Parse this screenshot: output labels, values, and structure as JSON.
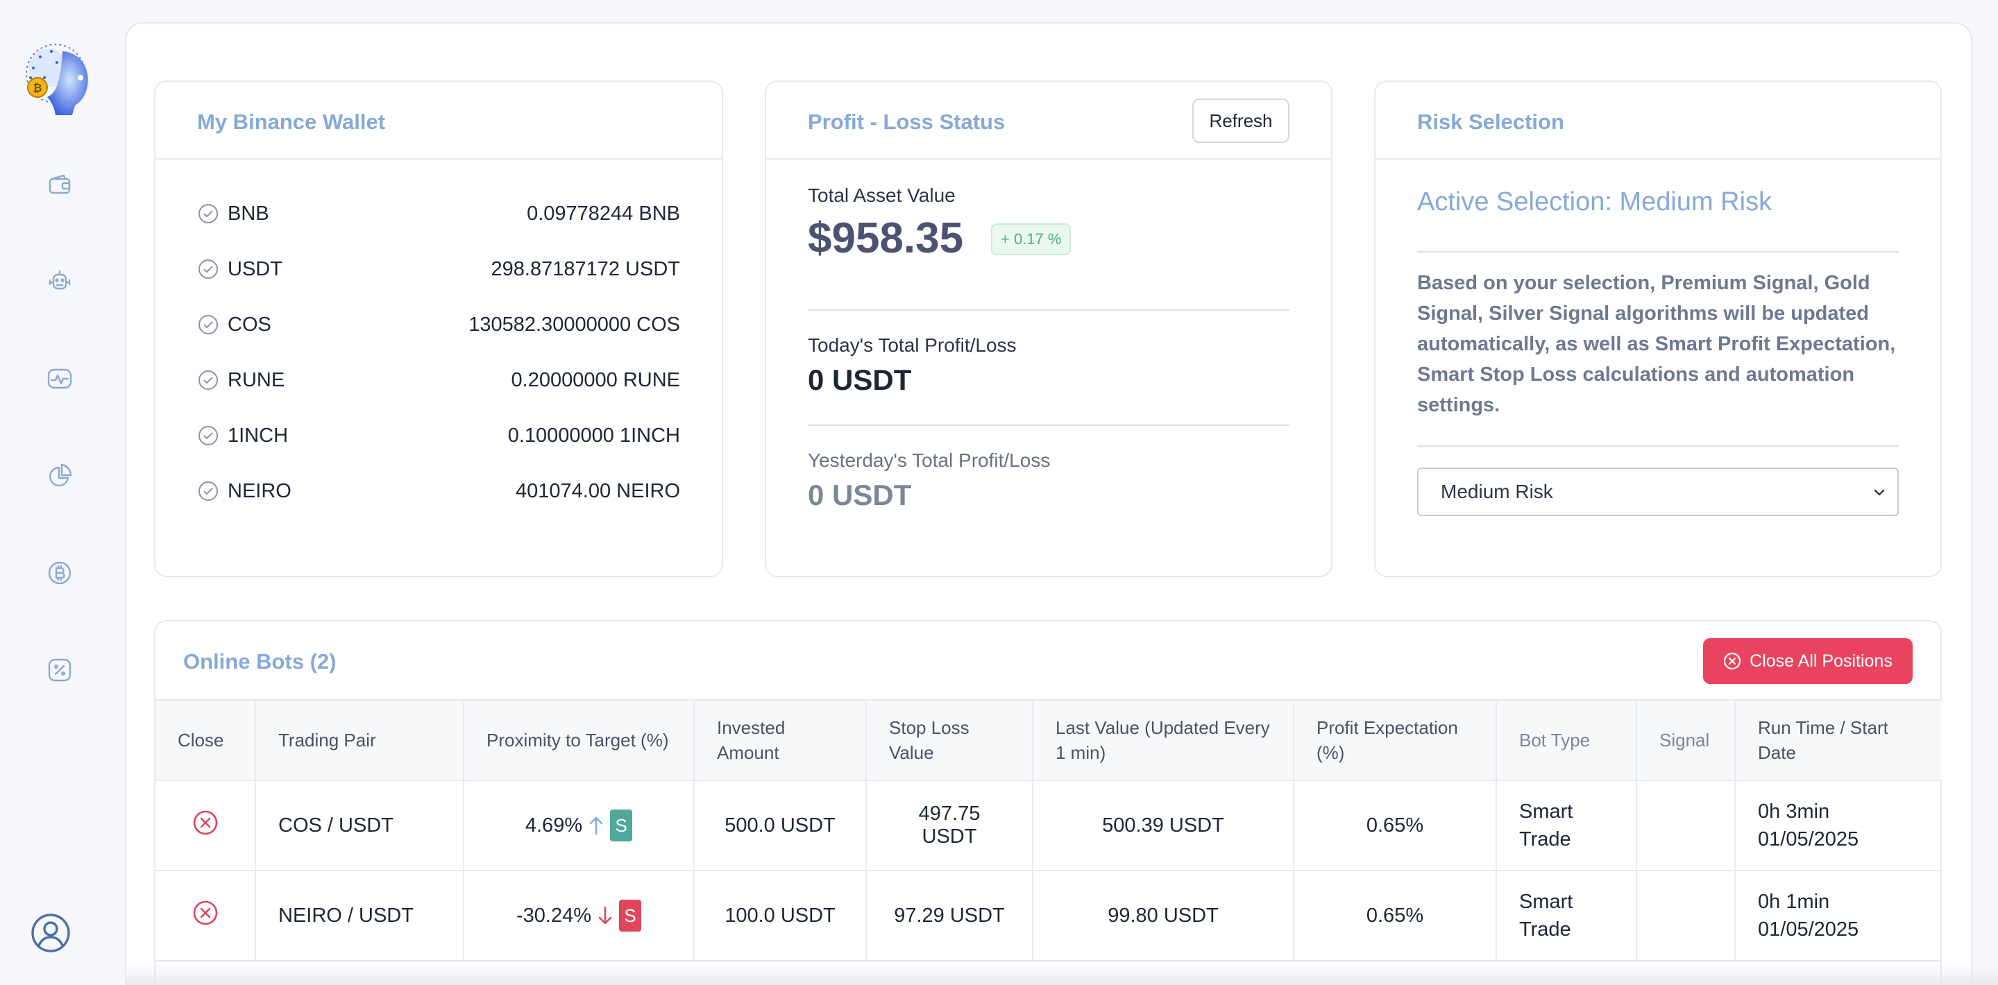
{
  "sidebar": {
    "items": [
      {
        "icon": "wallet-icon"
      },
      {
        "icon": "robot-icon"
      },
      {
        "icon": "activity-icon"
      },
      {
        "icon": "pie-chart-icon"
      },
      {
        "icon": "bitcoin-icon"
      },
      {
        "icon": "percent-icon"
      }
    ],
    "user_icon": "user-circle-icon"
  },
  "wallet": {
    "title": "My Binance Wallet",
    "rows": [
      {
        "coin": "BNB",
        "amount": "0.09778244 BNB"
      },
      {
        "coin": "USDT",
        "amount": "298.87187172 USDT"
      },
      {
        "coin": "COS",
        "amount": "130582.30000000 COS"
      },
      {
        "coin": "RUNE",
        "amount": "0.20000000 RUNE"
      },
      {
        "coin": "1INCH",
        "amount": "0.10000000 1INCH"
      },
      {
        "coin": "NEIRO",
        "amount": "401074.00 NEIRO"
      }
    ]
  },
  "profit": {
    "title": "Profit - Loss Status",
    "refresh_label": "Refresh",
    "total_asset_label": "Total Asset Value",
    "total_asset_value": "$958.35",
    "change_badge": "+ 0.17 %",
    "today_label": "Today's Total Profit/Loss",
    "today_value": "0 USDT",
    "yesterday_label": "Yesterday's Total Profit/Loss",
    "yesterday_value": "0 USDT"
  },
  "risk": {
    "title": "Risk Selection",
    "active": "Active Selection: Medium Risk",
    "description": "Based on your selection, Premium Signal, Gold Signal, Silver Signal algorithms will be updated automatically, as well as Smart Profit Expectation, Smart Stop Loss calculations and automation settings.",
    "selected": "Medium Risk"
  },
  "bots": {
    "title": "Online Bots (2)",
    "close_all_label": "Close All Positions",
    "columns": [
      "Close",
      "Trading Pair",
      "Proximity to Target (%)",
      "Invested Amount",
      "Stop Loss Value",
      "Last Value (Updated Every 1 min)",
      "Profit Expectation (%)",
      "Bot Type",
      "Signal",
      "Run Time / Start Date"
    ],
    "rows": [
      {
        "pair": "COS / USDT",
        "proximity": "4.69%",
        "direction": "up",
        "signal_letter": "S",
        "signal_color": "#4fa89a",
        "invested": "500.0 USDT",
        "stop_loss": "497.75 USDT",
        "last_value": "500.39 USDT",
        "profit_expectation": "0.65%",
        "bot_type_1": "Smart",
        "bot_type_2": "Trade",
        "run_time": "0h 3min",
        "start_date": "01/05/2025"
      },
      {
        "pair": "NEIRO / USDT",
        "proximity": "-30.24%",
        "direction": "down",
        "signal_letter": "S",
        "signal_color": "#e0455e",
        "invested": "100.0 USDT",
        "stop_loss": "97.29 USDT",
        "last_value": "99.80 USDT",
        "profit_expectation": "0.65%",
        "bot_type_1": "Smart",
        "bot_type_2": "Trade",
        "run_time": "0h 1min",
        "start_date": "01/05/2025"
      }
    ]
  },
  "colors": {
    "accent": "#86a9d8",
    "danger": "#e9445f",
    "success": "#4fb07a"
  }
}
